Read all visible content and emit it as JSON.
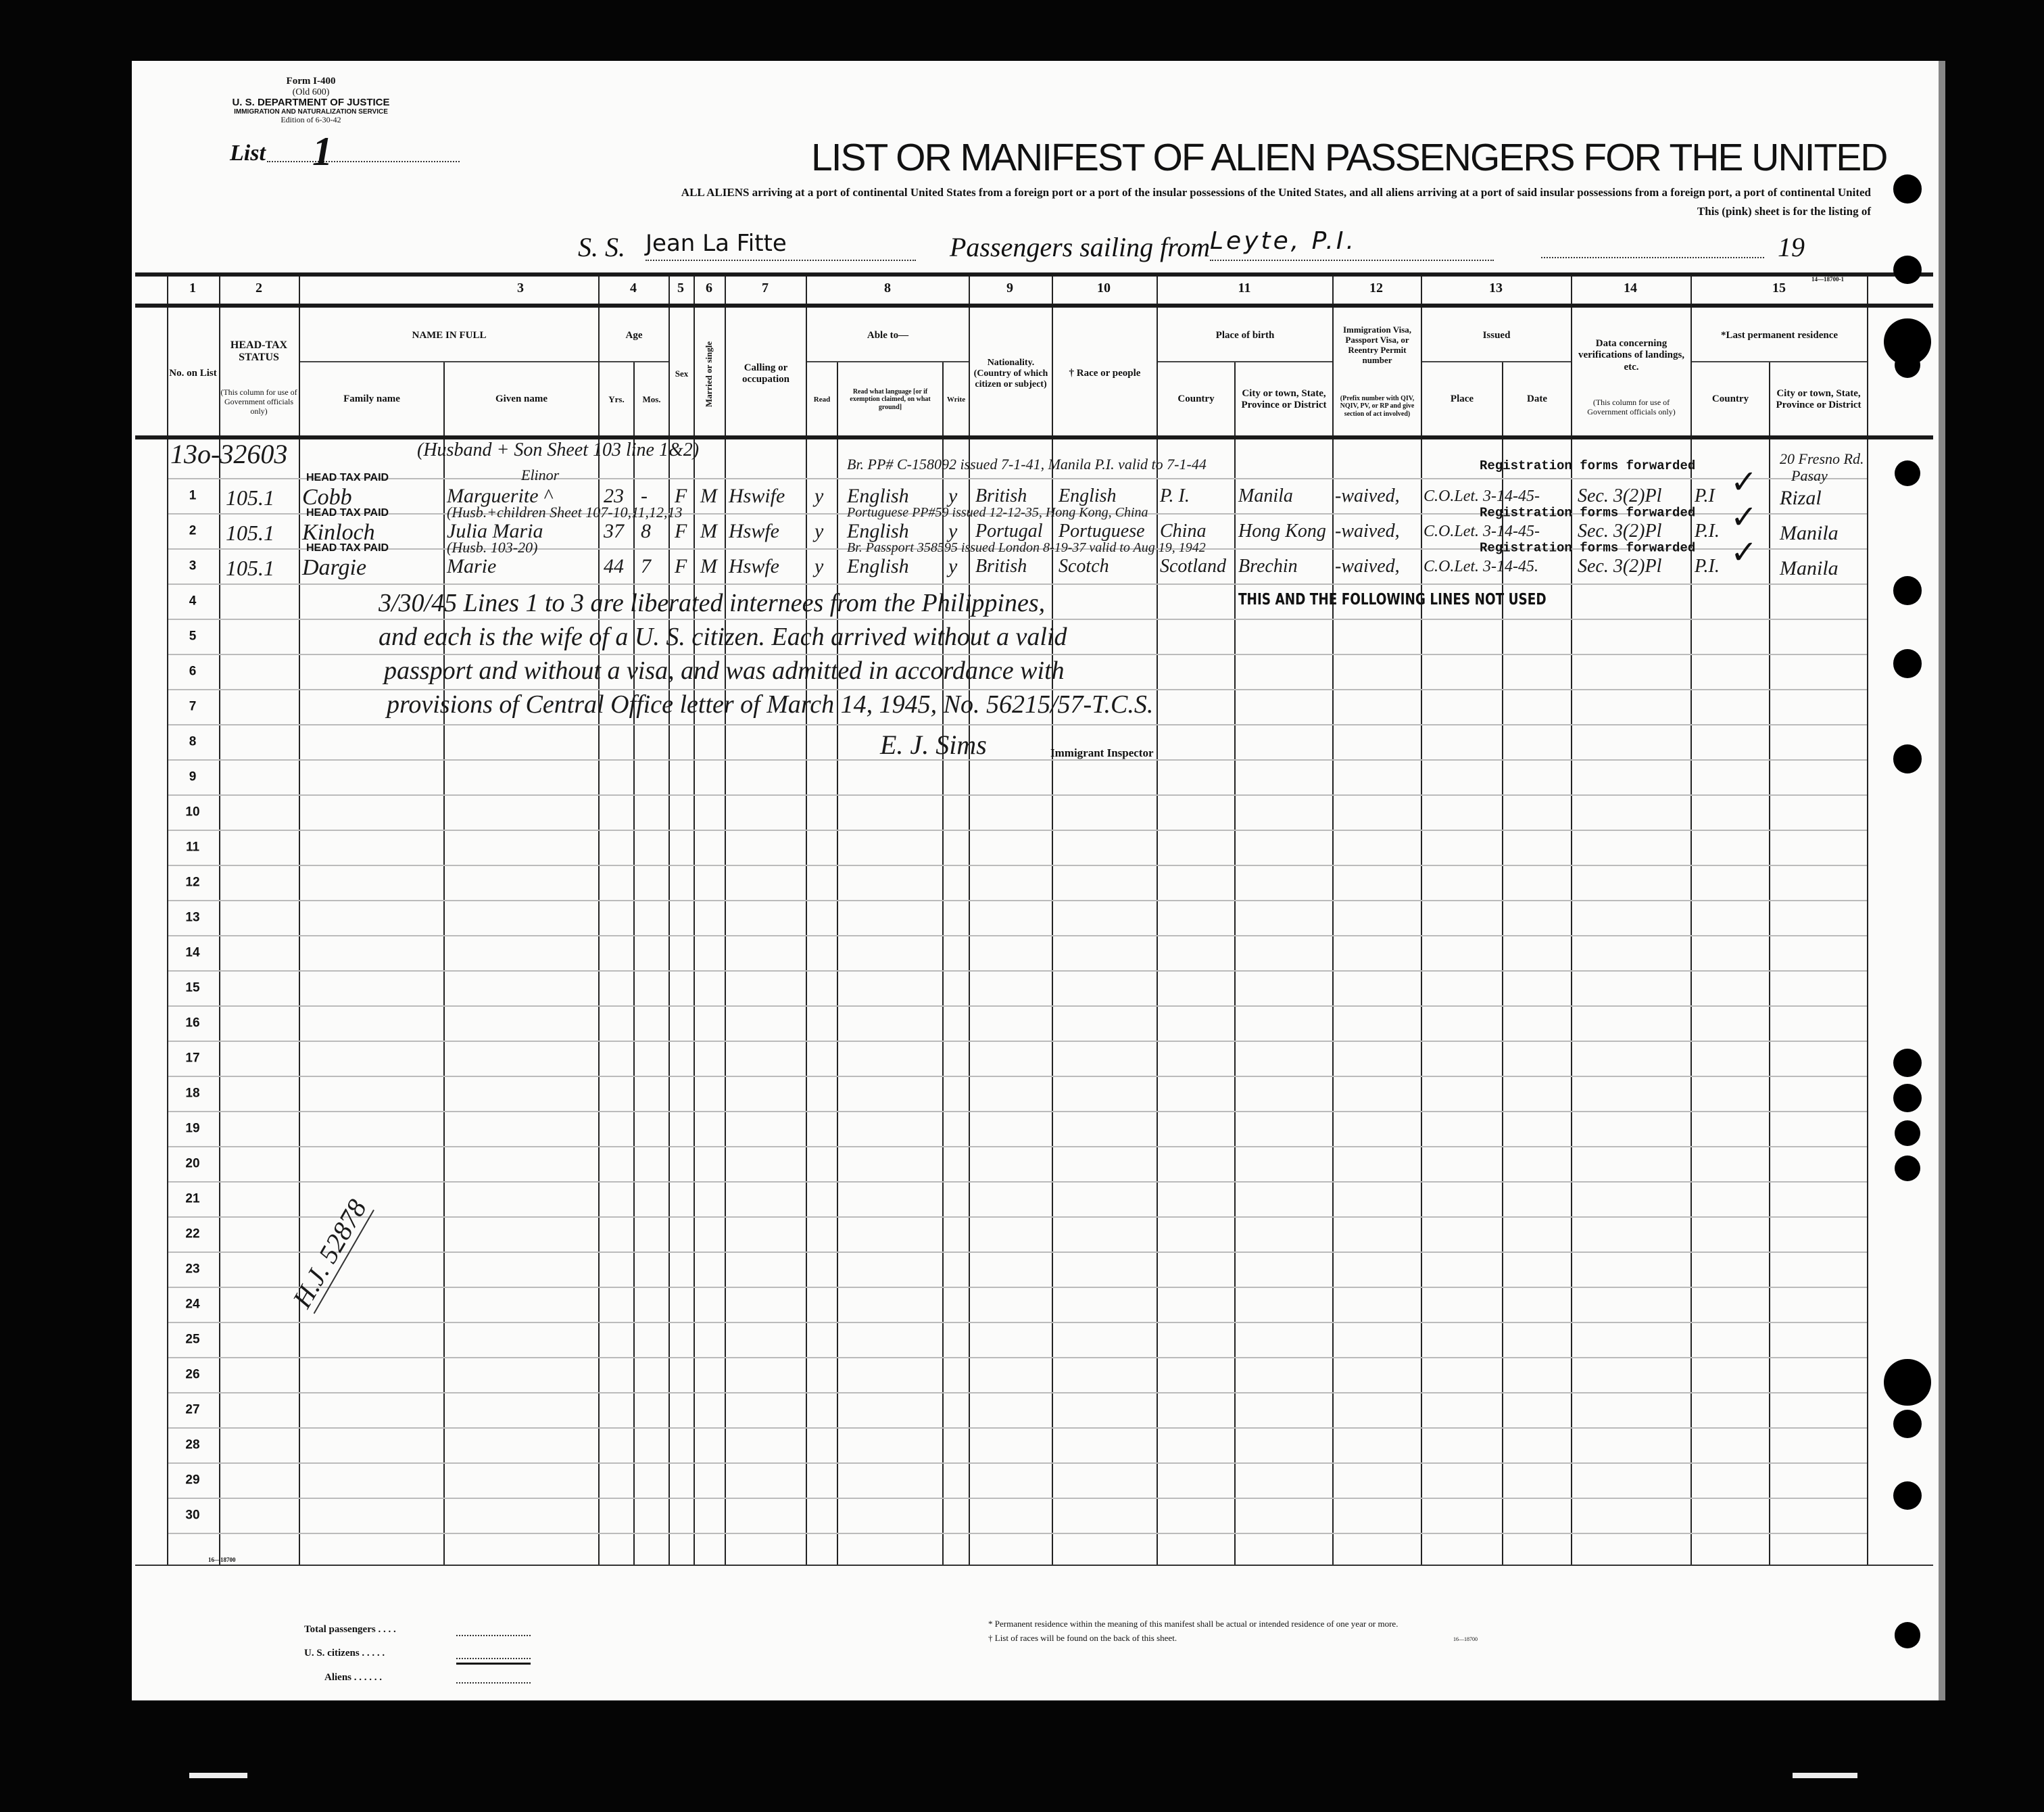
{
  "form": {
    "form_number": "Form I-400",
    "old_number": "(Old 600)",
    "department": "U. S. DEPARTMENT OF JUSTICE",
    "service": "IMMIGRATION AND NATURALIZATION SERVICE",
    "edition": "Edition of 6-30-42",
    "list_label": "List",
    "list_value": "1"
  },
  "title": "LIST OR MANIFEST OF ALIEN PASSENGERS FOR THE UNITED",
  "subtitle_1": "ALL ALIENS arriving at a port of continental United States from a foreign port or a port of the insular possessions of the United States, and all aliens arriving at a port of said insular possessions from a foreign port, a port of continental United",
  "subtitle_2": "This (pink) sheet is for the listing of",
  "voyage": {
    "ss_label": "S. S.",
    "ship": "Jean La Fitte",
    "sailing_label": "Passengers sailing from",
    "port": "Leyte, P.I.",
    "year_label": "19",
    "corner_code": "14—18700-1"
  },
  "column_numbers": [
    "1",
    "2",
    "3",
    "4",
    "5",
    "6",
    "7",
    "8",
    "9",
    "10",
    "11",
    "12",
    "13",
    "14",
    "15"
  ],
  "headers": {
    "no_on_list": "No. on List",
    "head_tax": "HEAD-TAX STATUS",
    "head_tax_note": "(This column for use of Government officials only)",
    "name_in_full": "NAME IN FULL",
    "family_name": "Family name",
    "given_name": "Given name",
    "age": "Age",
    "yrs": "Yrs.",
    "mos": "Mos.",
    "sex": "Sex",
    "married": "Married or single",
    "calling": "Calling or occupation",
    "able_to": "Able to—",
    "read": "Read",
    "read_what": "Read what language [or if exemption claimed, on what ground]",
    "write": "Write",
    "nationality": "Nationality. (Country of which citizen or subject)",
    "race": "† Race or people",
    "place_of_birth": "Place of birth",
    "country": "Country",
    "city": "City or town, State, Province or District",
    "visa": "Immigration Visa, Passport Visa, or Reentry Permit number",
    "visa_note": "(Prefix number with QIV, NQIV, PV, or RP and give section of act involved)",
    "issued": "Issued",
    "place": "Place",
    "date": "Date",
    "data_concerning": "Data concerning verifications of landings, etc.",
    "data_note": "(This column for use of Government officials only)",
    "last_residence": "*Last permanent residence",
    "res_country": "Country",
    "res_city": "City or town, State, Province or District"
  },
  "line_numbers": [
    "1",
    "2",
    "3",
    "4",
    "5",
    "6",
    "7",
    "8",
    "9",
    "10",
    "11",
    "12",
    "13",
    "14",
    "15",
    "16",
    "17",
    "18",
    "19",
    "20",
    "21",
    "22",
    "23",
    "24",
    "25",
    "26",
    "27",
    "28",
    "29",
    "30"
  ],
  "pre_row": {
    "file_number": "13o-32603",
    "name_note": "(Husband + Son Sheet 103 line 1&2)",
    "passport_note": "Br. PP# C-158092 issued 7-1-41, Manila P.I. valid to 7-1-44",
    "registration": "Registration forms forwarded",
    "residence_1": "20 Fresno Rd.",
    "residence_2": "Pasay"
  },
  "passengers": [
    {
      "head_tax_stamp": "HEAD TAX PAID",
      "head_tax": "105.1",
      "family": "Cobb",
      "given": "Marguerite ^",
      "given_above": "Elinor",
      "yrs": "23",
      "mos": "-",
      "sex": "F",
      "married": "M",
      "occupation": "Hswife",
      "read": "y",
      "language": "English",
      "write": "y",
      "nationality": "British",
      "race": "English",
      "birth_country": "P. I.",
      "birth_city": "Manila",
      "visa": "-waived,",
      "issued": "C.O.Let. 3-14-45-",
      "data": "Sec. 3(2)Pl",
      "res_country": "P.I",
      "res_city": "Rizal",
      "checked": true
    },
    {
      "head_tax_stamp": "HEAD TAX PAID",
      "head_tax": "105.1",
      "family": "Kinloch",
      "given": "Julia Maria",
      "name_note": "(Husb.+children Sheet 107-10,11,12,13",
      "passport_note": "Portuguese PP#59 issued 12-12-35, Hong Kong, China",
      "registration": "Registration forms forwarded",
      "yrs": "37",
      "mos": "8",
      "sex": "F",
      "married": "M",
      "occupation": "Hswfe",
      "read": "y",
      "language": "English",
      "write": "y",
      "nationality": "Portugal",
      "race": "Portuguese",
      "birth_country": "China",
      "birth_city": "Hong Kong",
      "visa": "-waived,",
      "issued": "C.O.Let. 3-14-45-",
      "data": "Sec. 3(2)Pl",
      "res_country": "P.I.",
      "res_city": "Manila",
      "checked": true
    },
    {
      "head_tax_stamp": "HEAD TAX PAID",
      "head_tax": "105.1",
      "family": "Dargie",
      "given": "Marie",
      "name_note": "(Husb. 103-20)",
      "passport_note": "Br. Passport 358595 issued London 8-19-37 valid to Aug 19, 1942",
      "registration": "Registration forms forwarded",
      "yrs": "44",
      "mos": "7",
      "sex": "F",
      "married": "M",
      "occupation": "Hswfe",
      "read": "y",
      "language": "English",
      "write": "y",
      "nationality": "British",
      "race": "Scotch",
      "birth_country": "Scotland",
      "birth_city": "Brechin",
      "visa": "-waived,",
      "issued": "C.O.Let. 3-14-45.",
      "data": "Sec. 3(2)Pl",
      "res_country": "P.I.",
      "res_city": "Manila",
      "checked": true
    }
  ],
  "not_used_stamp": "THIS AND THE FOLLOWING LINES NOT USED",
  "note_lines": [
    "3/30/45 Lines 1 to 3 are liberated internees from the Philippines,",
    "and each is the wife of a U. S. citizen. Each arrived without a valid",
    "passport and without a visa, and was admitted in accordance with",
    "provisions of Central Office letter of March 14, 1945, No. 56215/57-T.C.S."
  ],
  "signature": "E. J. Sims",
  "signature_title": "Immigrant Inspector",
  "side_stamp": "H.J. 52878",
  "table_code": "16—18700",
  "footer": {
    "total_passengers": "Total passengers . . . .",
    "us_citizens": "U. S. citizens . . . . .",
    "aliens": "Aliens . . . . . .",
    "note_residence": "* Permanent residence within the meaning of this manifest shall be actual or intended residence of one year or more.",
    "note_races": "† List of races will be found on the back of this sheet.",
    "code": "16—18700"
  },
  "colors": {
    "paper": "#fbfbfa",
    "ink": "#111111",
    "background": "#050505"
  }
}
